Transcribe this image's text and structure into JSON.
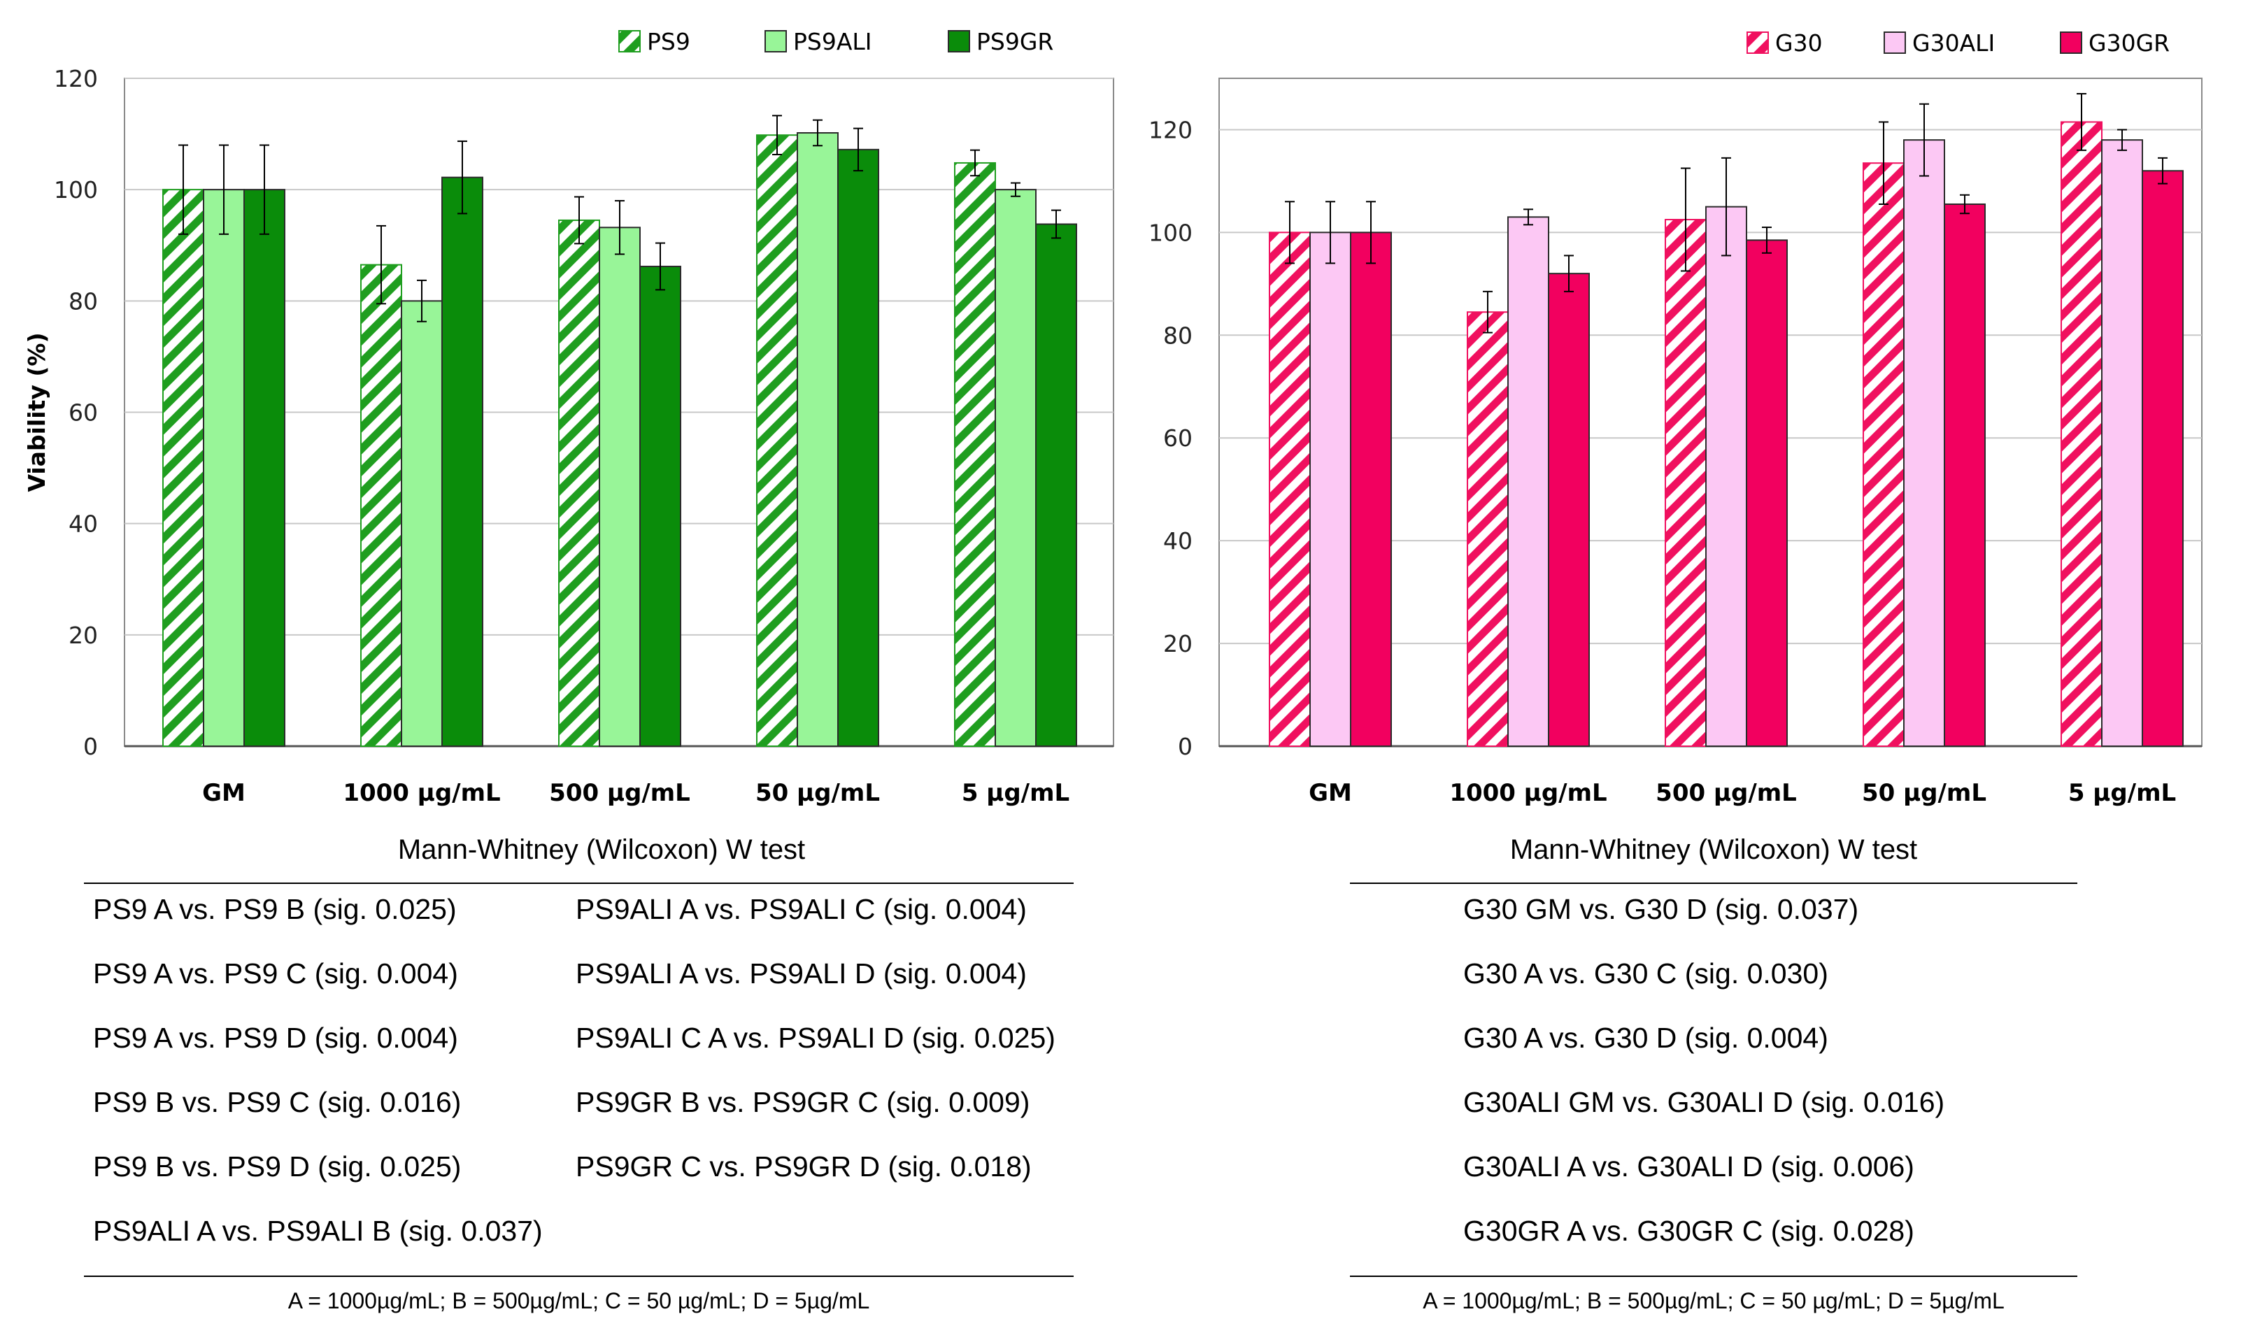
{
  "chart_data": [
    {
      "type": "bar",
      "panel": "left",
      "title": "",
      "xlabel": "",
      "ylabel": "Viability (%)",
      "ylim": [
        0,
        120
      ],
      "yticks": [
        0,
        20,
        40,
        60,
        80,
        100,
        120
      ],
      "grid": true,
      "legend_position": "top",
      "categories": [
        "GM",
        "1000 µg/mL",
        "500 µg/mL",
        "50 µg/mL",
        "5 µg/mL"
      ],
      "series": [
        {
          "name": "PS9",
          "pattern": "hatched",
          "color": "#1f9e1f",
          "values": [
            100,
            86.5,
            94.5,
            109.8,
            104.8
          ],
          "errors": [
            8,
            7,
            4.2,
            3.5,
            2.3
          ]
        },
        {
          "name": "PS9ALI",
          "pattern": "solid",
          "color": "#98f598",
          "values": [
            100,
            80,
            93.2,
            110.2,
            100
          ],
          "errors": [
            8,
            3.7,
            4.8,
            2.3,
            1.2
          ]
        },
        {
          "name": "PS9GR",
          "pattern": "solid",
          "color": "#0a8c0a",
          "values": [
            100,
            102.2,
            86.2,
            107.2,
            93.8
          ],
          "errors": [
            8,
            6.5,
            4.2,
            3.8,
            2.5
          ]
        }
      ]
    },
    {
      "type": "bar",
      "panel": "right",
      "title": "",
      "xlabel": "",
      "ylabel": "",
      "ylim": [
        0,
        130
      ],
      "yticks": [
        0,
        20,
        40,
        60,
        80,
        100,
        120
      ],
      "grid": true,
      "legend_position": "top",
      "categories": [
        "GM",
        "1000 µg/mL",
        "500 µg/mL",
        "50 µg/mL",
        "5 µg/mL"
      ],
      "series": [
        {
          "name": "G30",
          "pattern": "hatched",
          "color": "#f0105f",
          "values": [
            100,
            84.5,
            102.5,
            113.5,
            121.5
          ],
          "errors": [
            6,
            4,
            10,
            8,
            5.5
          ]
        },
        {
          "name": "G30ALI",
          "pattern": "solid",
          "color": "#fcc8f4",
          "values": [
            100,
            103,
            105,
            118,
            118
          ],
          "errors": [
            6,
            1.5,
            9.5,
            7,
            2
          ]
        },
        {
          "name": "G30GR",
          "pattern": "solid",
          "color": "#f2005f",
          "values": [
            100,
            92,
            98.5,
            105.5,
            112
          ],
          "errors": [
            6,
            3.5,
            2.5,
            1.8,
            2.5
          ]
        }
      ]
    }
  ],
  "tests": {
    "left": {
      "title": "Mann-Whitney (Wilcoxon) W test",
      "col1": [
        "PS9 A vs. PS9 B (sig. 0.025)",
        "PS9 A vs. PS9 C (sig. 0.004)",
        "PS9 A vs. PS9 D (sig. 0.004)",
        "PS9 B vs. PS9 C (sig. 0.016)",
        "PS9 B vs. PS9 D (sig. 0.025)",
        "PS9ALI A vs. PS9ALI B (sig. 0.037)"
      ],
      "col2": [
        "PS9ALI A vs. PS9ALI C (sig. 0.004)",
        "PS9ALI A vs. PS9ALI D (sig. 0.004)",
        "PS9ALI C A vs. PS9ALI D (sig. 0.025)",
        "PS9GR B vs. PS9GR C (sig. 0.009)",
        "PS9GR C vs. PS9GR D (sig. 0.018)"
      ],
      "footnote": "A = 1000µg/mL; B = 500µg/mL; C = 50 µg/mL; D = 5µg/mL"
    },
    "right": {
      "title": "Mann-Whitney (Wilcoxon) W test",
      "col1": [
        "G30 GM vs. G30 D (sig. 0.037)",
        "G30 A vs. G30 C (sig. 0.030)",
        "G30 A vs. G30 D (sig. 0.004)",
        "G30ALI GM vs. G30ALI D (sig. 0.016)",
        "G30ALI A vs. G30ALI D (sig. 0.006)",
        "G30GR A vs. G30GR C (sig. 0.028)"
      ],
      "footnote": "A = 1000µg/mL; B = 500µg/mL; C = 50 µg/mL; D = 5µg/mL"
    }
  }
}
